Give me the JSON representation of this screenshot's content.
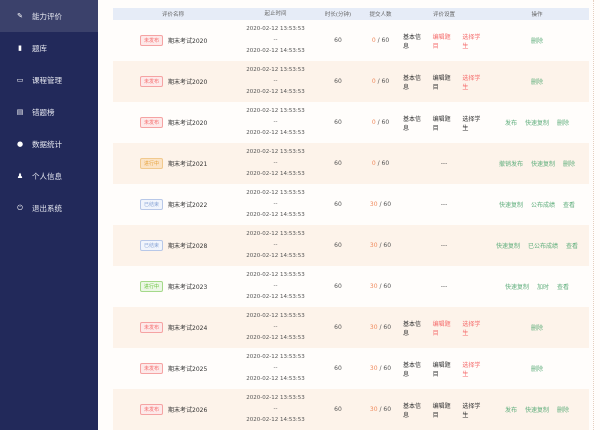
{
  "sidebar": {
    "items": [
      {
        "label": "能力评价",
        "icon": "pencil-icon",
        "active": true
      },
      {
        "label": "题库",
        "icon": "book-icon"
      },
      {
        "label": "课程管理",
        "icon": "monitor-icon"
      },
      {
        "label": "错题榜",
        "icon": "list-icon"
      },
      {
        "label": "数据统计",
        "icon": "pie-chart-icon"
      },
      {
        "label": "个人信息",
        "icon": "user-icon"
      },
      {
        "label": "退出系统",
        "icon": "power-icon"
      }
    ]
  },
  "table": {
    "headers": [
      "评价名称",
      "起止时间",
      "时长(分钟)",
      "提交人数",
      "评价设置",
      "操作"
    ],
    "rows": [
      {
        "status": "未发布",
        "status_color": "red",
        "name": "期末考试2020",
        "start": "2020-02-12 13:53:53",
        "sep": "--",
        "end": "2020-02-12 14:53:53",
        "duration": "60",
        "submitted": "0",
        "total": "/ 60",
        "settings": [
          {
            "t": "基本信息",
            "c": "dark"
          },
          {
            "t": "编辑题目",
            "c": "red"
          },
          {
            "t": "选择学生",
            "c": "red"
          }
        ],
        "actions": [
          "删除"
        ]
      },
      {
        "status": "未发布",
        "status_color": "red",
        "name": "期末考试2020",
        "start": "2020-02-12 13:53:53",
        "sep": "--",
        "end": "2020-02-12 14:53:53",
        "duration": "60",
        "submitted": "0",
        "total": "/ 60",
        "settings": [
          {
            "t": "基本信息",
            "c": "dark"
          },
          {
            "t": "编辑题目",
            "c": "dark"
          },
          {
            "t": "选择学生",
            "c": "red"
          }
        ],
        "actions": [
          "删除"
        ]
      },
      {
        "status": "未发布",
        "status_color": "red",
        "name": "期末考试2020",
        "start": "2020-02-12 13:53:53",
        "sep": "--",
        "end": "2020-02-12 14:53:53",
        "duration": "60",
        "submitted": "0",
        "total": "/ 60",
        "settings": [
          {
            "t": "基本信息",
            "c": "dark"
          },
          {
            "t": "编辑题目",
            "c": "dark"
          },
          {
            "t": "选择学生",
            "c": "dark"
          }
        ],
        "actions": [
          "发布",
          "快速复制",
          "删除"
        ]
      },
      {
        "status": "进行中",
        "status_color": "orange",
        "name": "期末考试2021",
        "start": "2020-02-12 13:53:53",
        "sep": "--",
        "end": "2020-02-12 14:53:53",
        "duration": "60",
        "submitted": "0",
        "total": "/ 60",
        "settings_text": "---",
        "actions": [
          "撤销发布",
          "快速复制",
          "删除"
        ]
      },
      {
        "status": "已结束",
        "status_color": "blue",
        "name": "期末考试2022",
        "start": "2020-02-12 13:53:53",
        "sep": "--",
        "end": "2020-02-12 14:53:53",
        "duration": "60",
        "submitted": "30",
        "total": "/ 60",
        "settings_text": "---",
        "actions": [
          "快速复制",
          "公布成绩",
          "查看"
        ]
      },
      {
        "status": "已结束",
        "status_color": "blue",
        "name": "期末考试2028",
        "start": "2020-02-12 13:53:53",
        "sep": "--",
        "end": "2020-02-12 14:53:53",
        "duration": "60",
        "submitted": "30",
        "total": "/ 60",
        "settings_text": "---",
        "actions": [
          "快速复制",
          "已公布成绩",
          "查看"
        ]
      },
      {
        "status": "进行中",
        "status_color": "green",
        "name": "期末考试2023",
        "start": "2020-02-12 13:53:53",
        "sep": "--",
        "end": "2020-02-12 14:53:53",
        "duration": "60",
        "submitted": "30",
        "total": "/ 60",
        "settings_text": "---",
        "actions": [
          "快速复制",
          "加时",
          "查看"
        ]
      },
      {
        "status": "未发布",
        "status_color": "red",
        "name": "期末考试2024",
        "start": "2020-02-12 13:53:53",
        "sep": "--",
        "end": "2020-02-12 14:53:53",
        "duration": "60",
        "submitted": "30",
        "total": "/ 60",
        "settings": [
          {
            "t": "基本信息",
            "c": "dark"
          },
          {
            "t": "编辑题目",
            "c": "red"
          },
          {
            "t": "选择学生",
            "c": "red"
          }
        ],
        "actions": [
          "删除"
        ]
      },
      {
        "status": "未发布",
        "status_color": "red",
        "name": "期末考试2025",
        "start": "2020-02-12 13:53:53",
        "sep": "--",
        "end": "2020-02-12 14:53:53",
        "duration": "60",
        "submitted": "30",
        "total": "/ 60",
        "settings": [
          {
            "t": "基本信息",
            "c": "dark"
          },
          {
            "t": "编辑题目",
            "c": "dark"
          },
          {
            "t": "选择学生",
            "c": "red"
          }
        ],
        "actions": [
          "删除"
        ]
      },
      {
        "status": "未发布",
        "status_color": "red",
        "name": "期末考试2026",
        "start": "2020-02-12 13:53:53",
        "sep": "--",
        "end": "2020-02-12 14:53:53",
        "duration": "60",
        "submitted": "30",
        "total": "/ 60",
        "settings": [
          {
            "t": "基本信息",
            "c": "dark"
          },
          {
            "t": "编辑题目",
            "c": "dark"
          },
          {
            "t": "选择学生",
            "c": "dark"
          }
        ],
        "actions": [
          "发布",
          "快速复制",
          "删除"
        ]
      }
    ]
  }
}
